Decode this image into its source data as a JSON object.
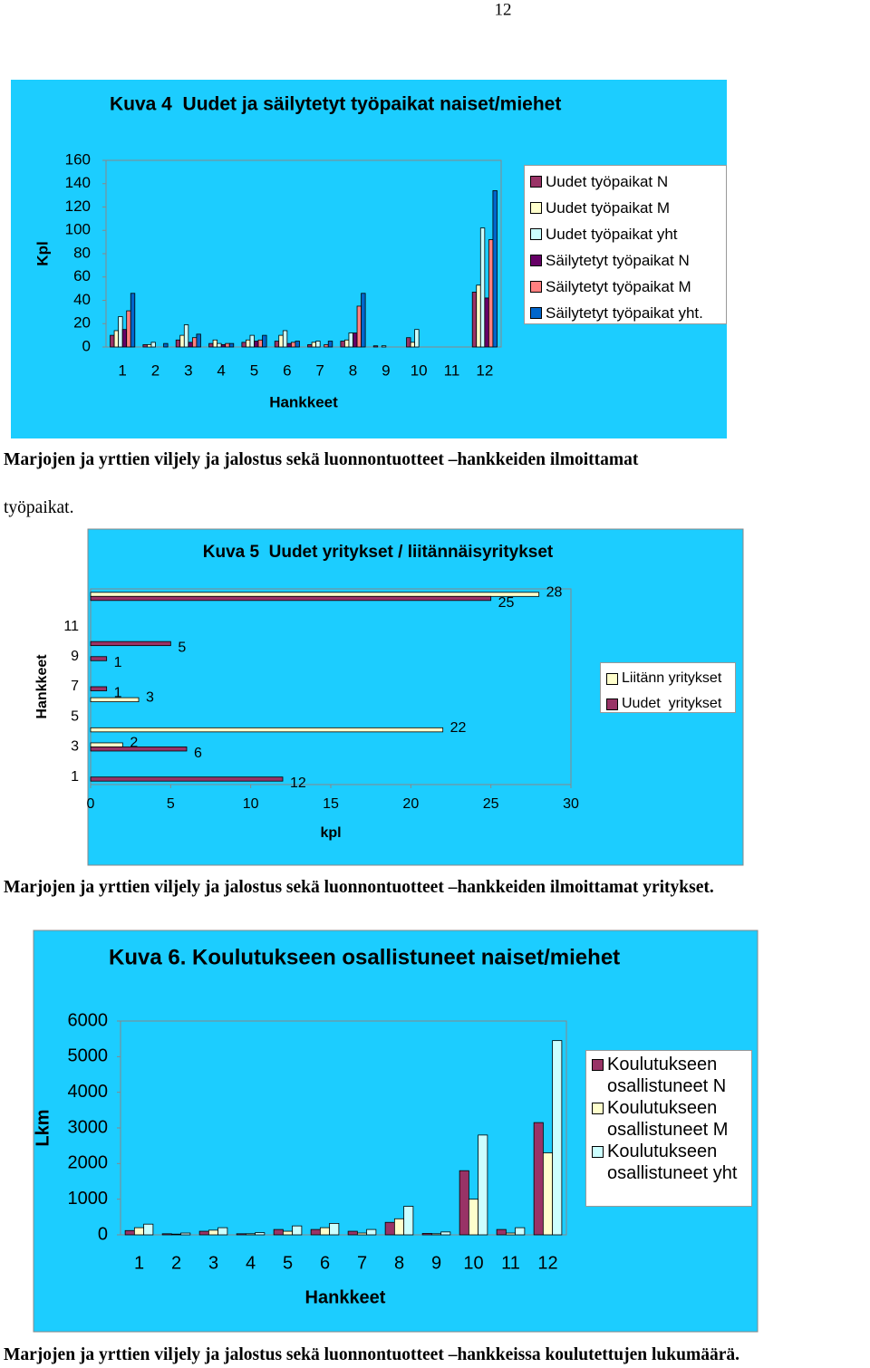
{
  "page_number": "12",
  "chart_data": [
    {
      "type": "bar",
      "title": "Kuva 4  Uudet ja säilytetyt työpaikat naiset/miehet",
      "y_label": "Kpl",
      "x_label": "Hankkeet",
      "categories": [
        "1",
        "2",
        "3",
        "4",
        "5",
        "6",
        "7",
        "8",
        "9",
        "10",
        "11",
        "12"
      ],
      "series": [
        {
          "name": "Uudet työpaikat N",
          "color": "#993366",
          "values": [
            10,
            2,
            6,
            3,
            4,
            5,
            2,
            5,
            1,
            8,
            0,
            47
          ]
        },
        {
          "name": "Uudet työpaikat M",
          "color": "#ffffcc",
          "values": [
            14,
            2,
            10,
            6,
            6,
            10,
            4,
            6,
            0,
            4,
            0,
            53
          ]
        },
        {
          "name": "Uudet työpaikat yht",
          "color": "#ccffff",
          "values": [
            26,
            4,
            19,
            3,
            10,
            14,
            5,
            12,
            1,
            15,
            0,
            102
          ]
        },
        {
          "name": "Säilytetyt työpaikat N",
          "color": "#660066",
          "values": [
            15,
            0,
            4,
            2,
            5,
            3,
            0,
            12,
            0,
            0,
            0,
            42
          ]
        },
        {
          "name": "Säilytetyt työpaikat M",
          "color": "#ff8080",
          "values": [
            31,
            0,
            8,
            3,
            6,
            4,
            2,
            35,
            0,
            0,
            0,
            92
          ]
        },
        {
          "name": "Säilytetyt työpaikat yht.",
          "color": "#0066cc",
          "values": [
            46,
            3,
            11,
            3,
            10,
            5,
            5,
            46,
            0,
            0,
            0,
            134
          ]
        }
      ],
      "ylim": [
        0,
        160
      ],
      "yticks": [
        0,
        20,
        40,
        60,
        80,
        100,
        120,
        140,
        160
      ],
      "grid": false,
      "legend": "right"
    },
    {
      "type": "hbar",
      "title": "Kuva 5  Uudet yritykset / liitännäisyritykset",
      "y_label": "Hankkeet",
      "x_label": "kpl",
      "categories": [
        "1",
        null,
        "3",
        null,
        "5",
        null,
        "7",
        null,
        "9",
        null,
        "11",
        null,
        null
      ],
      "series": [
        {
          "name": "Liitänn yritykset",
          "color": "#ffffcc",
          "values": [
            null,
            null,
            2,
            22,
            null,
            3,
            null,
            null,
            null,
            null,
            null,
            null,
            28
          ]
        },
        {
          "name": "Uudet  yritykset",
          "color": "#993366",
          "values": [
            12,
            null,
            6,
            null,
            null,
            null,
            1,
            null,
            1,
            5,
            null,
            null,
            25
          ]
        }
      ],
      "xlim": [
        0,
        30
      ],
      "xticks": [
        0,
        5,
        10,
        15,
        20,
        25,
        30
      ],
      "grid": false,
      "legend": "right",
      "data_labels": true
    },
    {
      "type": "bar",
      "title": "Kuva 6. Koulutukseen osallistuneet naiset/miehet",
      "y_label": "Lkm",
      "x_label": "Hankkeet",
      "categories": [
        "1",
        "2",
        "3",
        "4",
        "5",
        "6",
        "7",
        "8",
        "9",
        "10",
        "11",
        "12"
      ],
      "series": [
        {
          "name": "Koulutukseen osallistuneet N",
          "color": "#993366",
          "values": [
            120,
            30,
            100,
            30,
            150,
            150,
            100,
            350,
            40,
            1800,
            150,
            3150
          ]
        },
        {
          "name": "Koulutukseen osallistuneet M",
          "color": "#ffffcc",
          "values": [
            200,
            20,
            130,
            30,
            100,
            200,
            50,
            450,
            30,
            1000,
            50,
            2300
          ]
        },
        {
          "name": "Koulutukseen osallistuneet yht",
          "color": "#ccffff",
          "values": [
            300,
            50,
            200,
            60,
            250,
            320,
            150,
            800,
            80,
            2800,
            200,
            5450
          ]
        }
      ],
      "ylim": [
        0,
        6000
      ],
      "yticks": [
        0,
        1000,
        2000,
        3000,
        4000,
        5000,
        6000
      ],
      "grid": false,
      "legend": "right"
    }
  ],
  "captions": [
    "Marjojen ja yrttien viljely ja jalostus sekä luonnontuotteet –hankkeiden ilmoittamat",
    "työpaikat.",
    "Marjojen ja yrttien viljely ja jalostus sekä luonnontuotteet –hankkeiden ilmoittamat yritykset.",
    "Marjojen ja yrttien viljely ja jalostus sekä luonnontuotteet –hankkeissa koulutettujen lukumäärä."
  ]
}
